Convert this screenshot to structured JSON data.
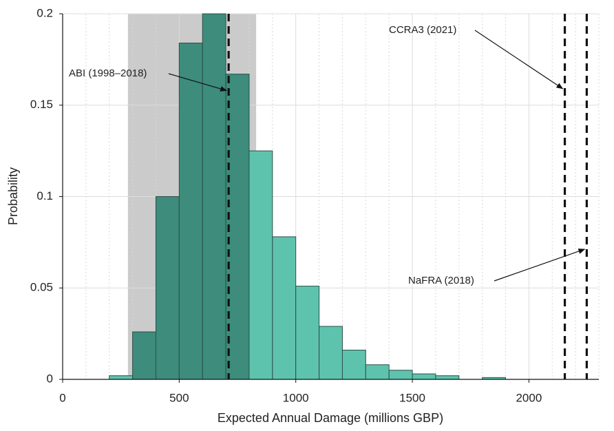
{
  "chart_data": {
    "type": "histogram",
    "xlabel": "Expected Annual Damage (millions GBP)",
    "ylabel": "Probability",
    "bins": [
      200,
      300,
      400,
      500,
      600,
      700,
      800,
      900,
      1000,
      1100,
      1200,
      1300,
      1400,
      1500,
      1600,
      1700,
      1800,
      1900
    ],
    "values": [
      0.002,
      0.026,
      0.1,
      0.184,
      0.2,
      0.167,
      0.125,
      0.078,
      0.051,
      0.029,
      0.016,
      0.008,
      0.005,
      0.003,
      0.002,
      0,
      0.001
    ],
    "color": "#5ec3ad",
    "highlight_color": "#3d8c7c",
    "shade": [
      280,
      830
    ],
    "shade_color": "#cbcbcb",
    "xlim": [
      0,
      2300
    ],
    "ylim": [
      0,
      0.2
    ],
    "xticks": [
      0,
      500,
      1000,
      1500,
      2000
    ],
    "xminor": [
      100,
      200,
      300,
      400,
      600,
      700,
      800,
      900,
      1100,
      1200,
      1300,
      1400,
      1600,
      1700,
      1800,
      1900,
      2100,
      2200,
      2300
    ],
    "yticks": [
      0,
      0.05,
      0.1,
      0.15,
      0.2
    ],
    "grid": true,
    "vlines": [
      {
        "label": "ABI (1998–2018)",
        "x": 712,
        "arrow_y": 0.158
      },
      {
        "label": "CCRA3 (2021)",
        "x": 2154,
        "arrow_y": 0.159
      },
      {
        "label": "NaFRA (2018)",
        "x": 2248,
        "arrow_y": 0.0712
      }
    ]
  }
}
